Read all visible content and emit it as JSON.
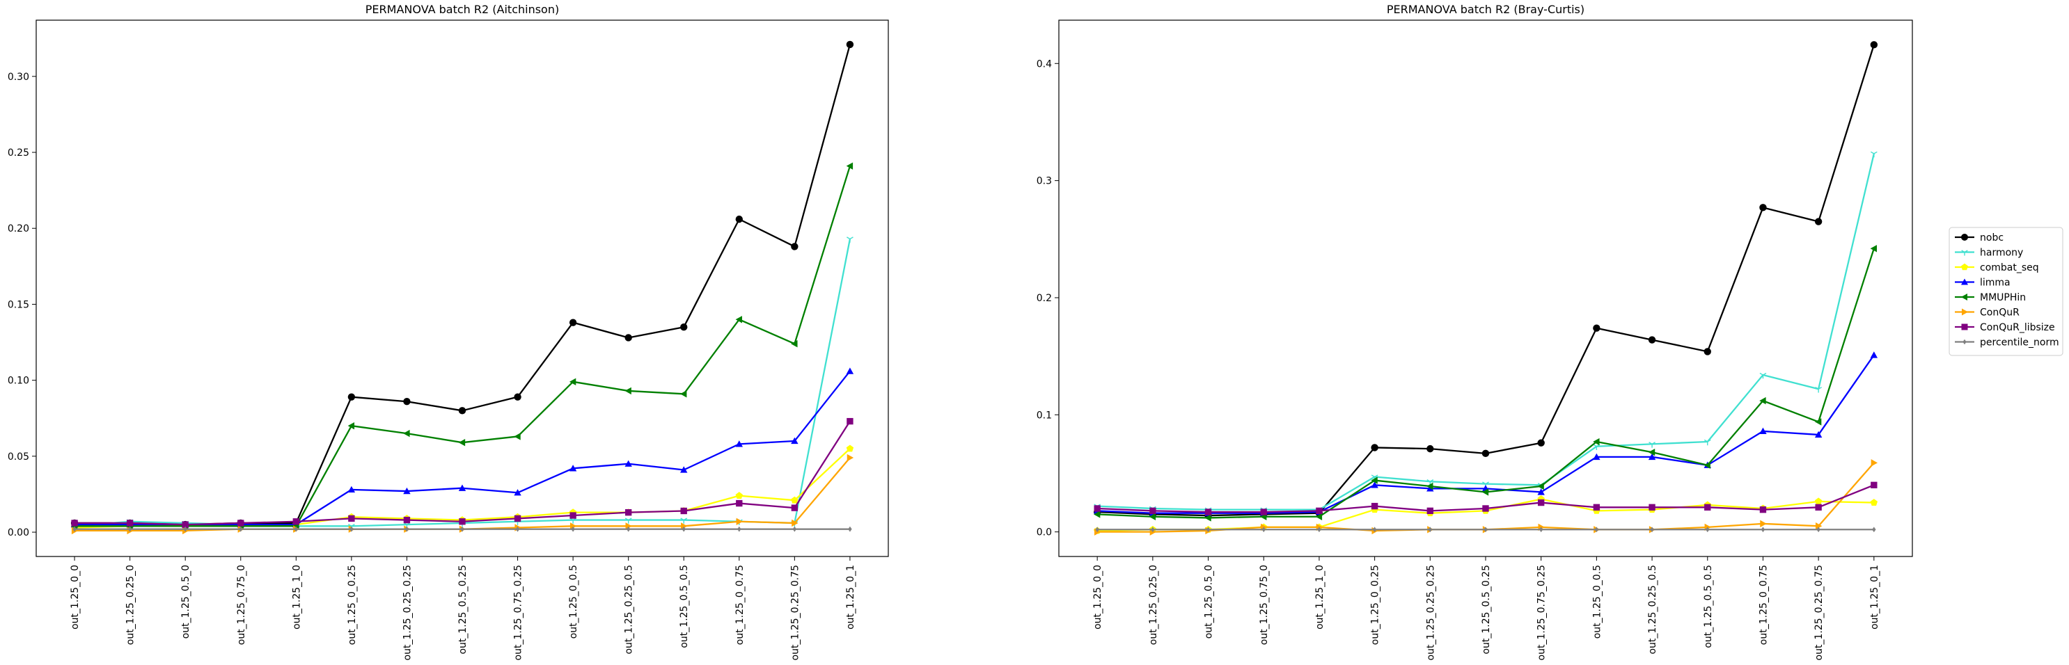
{
  "categories": [
    "out_1.25_0_0",
    "out_1.25_0.25_0",
    "out_1.25_0.5_0",
    "out_1.25_0.75_0",
    "out_1.25_1_0",
    "out_1.25_0_0.25",
    "out_1.25_0.25_0.25",
    "out_1.25_0.5_0.25",
    "out_1.25_0.75_0.25",
    "out_1.25_0_0.5",
    "out_1.25_0.25_0.5",
    "out_1.25_0.5_0.5",
    "out_1.25_0_0.75",
    "out_1.25_0.25_0.75",
    "out_1.25_0_1"
  ],
  "legend": {
    "placement": "right",
    "entries": [
      {
        "name": "nobc",
        "color": "#000000",
        "marker": "circle"
      },
      {
        "name": "harmony",
        "color": "#40e0d0",
        "marker": "tri_down"
      },
      {
        "name": "combat_seq",
        "color": "#ffff00",
        "marker": "pentagon"
      },
      {
        "name": "limma",
        "color": "#0000ff",
        "marker": "triangle_up"
      },
      {
        "name": "MMUPHin",
        "color": "#008000",
        "marker": "triangle_left"
      },
      {
        "name": "ConQuR",
        "color": "#ffa500",
        "marker": "triangle_right"
      },
      {
        "name": "ConQuR_libsize",
        "color": "#800080",
        "marker": "square"
      },
      {
        "name": "percentile_norm",
        "color": "#808080",
        "marker": "diamond"
      }
    ]
  },
  "chart_data": [
    {
      "type": "line",
      "title": "PERMANOVA batch R2 (Aitchinson)",
      "xlabel": "",
      "ylabel": "",
      "ylim": [
        -0.016,
        0.337
      ],
      "yticks": [
        0.0,
        0.05,
        0.1,
        0.15,
        0.2,
        0.25,
        0.3
      ],
      "ytick_labels": [
        "0.00",
        "0.05",
        "0.10",
        "0.15",
        "0.20",
        "0.25",
        "0.30"
      ],
      "grid": false,
      "series": [
        {
          "name": "nobc",
          "values": [
            0.006,
            0.006,
            0.005,
            0.006,
            0.006,
            0.089,
            0.086,
            0.08,
            0.089,
            0.138,
            0.128,
            0.135,
            0.206,
            0.188,
            0.321
          ]
        },
        {
          "name": "harmony",
          "values": [
            0.004,
            0.007,
            0.006,
            0.005,
            0.004,
            0.004,
            0.005,
            0.006,
            0.007,
            0.008,
            0.008,
            0.008,
            0.007,
            0.006,
            0.193
          ]
        },
        {
          "name": "combat_seq",
          "values": [
            0.003,
            0.004,
            0.004,
            0.004,
            0.005,
            0.01,
            0.009,
            0.008,
            0.01,
            0.013,
            0.013,
            0.014,
            0.024,
            0.021,
            0.055
          ]
        },
        {
          "name": "limma",
          "values": [
            0.005,
            0.005,
            0.005,
            0.005,
            0.005,
            0.028,
            0.027,
            0.029,
            0.026,
            0.042,
            0.045,
            0.041,
            0.058,
            0.06,
            0.106
          ]
        },
        {
          "name": "MMUPHin",
          "values": [
            0.004,
            0.004,
            0.004,
            0.004,
            0.004,
            0.07,
            0.065,
            0.059,
            0.063,
            0.099,
            0.093,
            0.091,
            0.14,
            0.124,
            0.241
          ]
        },
        {
          "name": "ConQuR",
          "values": [
            0.001,
            0.001,
            0.001,
            0.002,
            0.002,
            0.002,
            0.002,
            0.002,
            0.003,
            0.004,
            0.004,
            0.004,
            0.007,
            0.006,
            0.049
          ]
        },
        {
          "name": "ConQuR_libsize",
          "values": [
            0.006,
            0.006,
            0.005,
            0.006,
            0.007,
            0.009,
            0.008,
            0.007,
            0.009,
            0.011,
            0.013,
            0.014,
            0.019,
            0.016,
            0.073
          ]
        },
        {
          "name": "percentile_norm",
          "values": [
            0.002,
            0.002,
            0.002,
            0.002,
            0.002,
            0.002,
            0.002,
            0.002,
            0.002,
            0.002,
            0.002,
            0.002,
            0.002,
            0.002,
            0.002
          ]
        }
      ]
    },
    {
      "type": "line",
      "title": "PERMANOVA batch R2 (Bray-Curtis)",
      "xlabel": "",
      "ylabel": "",
      "ylim": [
        -0.021,
        0.437
      ],
      "yticks": [
        0.0,
        0.1,
        0.2,
        0.3,
        0.4
      ],
      "ytick_labels": [
        "0.0",
        "0.1",
        "0.2",
        "0.3",
        "0.4"
      ],
      "grid": false,
      "series": [
        {
          "name": "nobc",
          "values": [
            0.017,
            0.015,
            0.014,
            0.015,
            0.016,
            0.072,
            0.071,
            0.067,
            0.076,
            0.174,
            0.164,
            0.154,
            0.277,
            0.265,
            0.416
          ]
        },
        {
          "name": "harmony",
          "values": [
            0.022,
            0.02,
            0.019,
            0.019,
            0.019,
            0.047,
            0.043,
            0.041,
            0.04,
            0.073,
            0.075,
            0.077,
            0.134,
            0.122,
            0.323
          ]
        },
        {
          "name": "combat_seq",
          "values": [
            0.001,
            0.002,
            0.002,
            0.004,
            0.004,
            0.019,
            0.016,
            0.018,
            0.028,
            0.018,
            0.019,
            0.023,
            0.02,
            0.026,
            0.025
          ]
        },
        {
          "name": "limma",
          "values": [
            0.018,
            0.016,
            0.016,
            0.016,
            0.017,
            0.04,
            0.037,
            0.037,
            0.034,
            0.064,
            0.064,
            0.057,
            0.086,
            0.083,
            0.151
          ]
        },
        {
          "name": "MMUPHin",
          "values": [
            0.015,
            0.013,
            0.012,
            0.013,
            0.013,
            0.044,
            0.039,
            0.034,
            0.039,
            0.077,
            0.068,
            0.057,
            0.112,
            0.094,
            0.242
          ]
        },
        {
          "name": "ConQuR",
          "values": [
            0.0,
            0.0,
            0.001,
            0.004,
            0.004,
            0.001,
            0.002,
            0.002,
            0.004,
            0.002,
            0.002,
            0.004,
            0.007,
            0.005,
            0.059
          ]
        },
        {
          "name": "ConQuR_libsize",
          "values": [
            0.02,
            0.018,
            0.017,
            0.017,
            0.018,
            0.022,
            0.018,
            0.02,
            0.025,
            0.021,
            0.021,
            0.021,
            0.019,
            0.021,
            0.04
          ]
        },
        {
          "name": "percentile_norm",
          "values": [
            0.002,
            0.002,
            0.002,
            0.002,
            0.002,
            0.002,
            0.002,
            0.002,
            0.002,
            0.002,
            0.002,
            0.002,
            0.002,
            0.002,
            0.002
          ]
        }
      ]
    }
  ]
}
